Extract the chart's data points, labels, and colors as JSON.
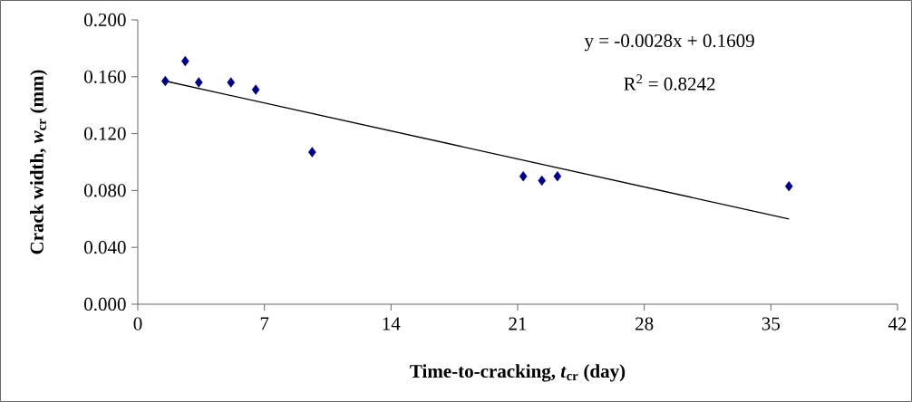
{
  "chart_data": {
    "type": "scatter",
    "xlabel": "Time-to-cracking, *t*$_{cr}$ (day)",
    "ylabel": "Crack width, *w*$_{cr}$ (mm)",
    "annotations": [
      "y = -0.0028x + 0.1609",
      "R$^{2}$ = 0.8242"
    ],
    "series": [
      {
        "color": "#000080",
        "marker": "diamond",
        "x": [
          1.52,
          2.62,
          3.37,
          5.15,
          6.52,
          9.64,
          21.31,
          22.34,
          23.2,
          36.0
        ],
        "values": [
          0.157,
          0.171,
          0.156,
          0.156,
          0.151,
          0.107,
          0.09,
          0.087,
          0.09,
          0.083
        ]
      },
      {
        "type": "line",
        "color": "#000000",
        "marker": "none",
        "line_style": "solid",
        "x": [
          1.52,
          36.0
        ],
        "values": [
          0.157,
          0.06
        ]
      }
    ],
    "xlim": [
      0,
      42
    ],
    "xticks": [
      0,
      7,
      14,
      21,
      28,
      35,
      42
    ],
    "ylim": [
      0,
      0.2
    ],
    "yticks": [
      {
        "value": 0,
        "label": "0.000"
      },
      {
        "value": 0.04,
        "label": "0.040"
      },
      {
        "value": 0.08,
        "label": "0.080"
      },
      {
        "value": 0.12,
        "label": "0.120"
      },
      {
        "value": 0.16,
        "label": "0.160"
      },
      {
        "value": 0.2,
        "label": "0.200"
      }
    ]
  }
}
